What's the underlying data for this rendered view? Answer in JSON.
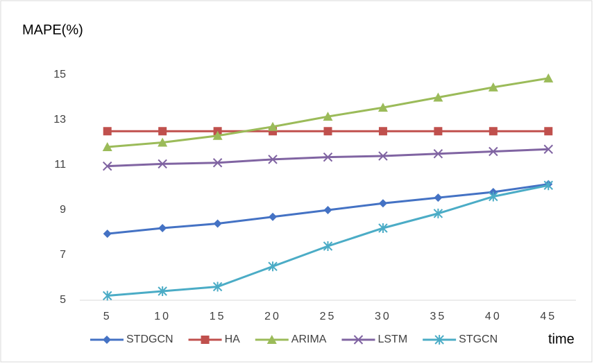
{
  "chart_data": {
    "type": "line",
    "y_label": "MAPE(%)",
    "x_label": "time",
    "categories": [
      "5",
      "10",
      "15",
      "20",
      "25",
      "30",
      "35",
      "40",
      "45"
    ],
    "series": [
      {
        "name": "STDGCN",
        "color": "#4472c4",
        "marker": "diamond",
        "values": [
          7.95,
          8.2,
          8.4,
          8.7,
          9.0,
          9.3,
          9.55,
          9.8,
          10.15
        ]
      },
      {
        "name": "HA",
        "color": "#c0504d",
        "marker": "square",
        "values": [
          12.5,
          12.5,
          12.5,
          12.5,
          12.5,
          12.5,
          12.5,
          12.5,
          12.5
        ]
      },
      {
        "name": "ARIMA",
        "color": "#9bbb59",
        "marker": "triangle",
        "values": [
          11.8,
          12.0,
          12.3,
          12.7,
          13.15,
          13.55,
          14.0,
          14.45,
          14.85
        ]
      },
      {
        "name": "LSTM",
        "color": "#8064a2",
        "marker": "x",
        "values": [
          10.95,
          11.05,
          11.1,
          11.25,
          11.35,
          11.4,
          11.5,
          11.6,
          11.7
        ]
      },
      {
        "name": "STGCN",
        "color": "#4bacc6",
        "marker": "star",
        "values": [
          5.2,
          5.4,
          5.6,
          6.5,
          7.4,
          8.2,
          8.85,
          9.6,
          10.1
        ]
      }
    ],
    "ylim": [
      5,
      16
    ],
    "yticks": [
      5,
      7,
      9,
      11,
      13,
      15
    ],
    "grid": false,
    "legend": "bottom"
  }
}
